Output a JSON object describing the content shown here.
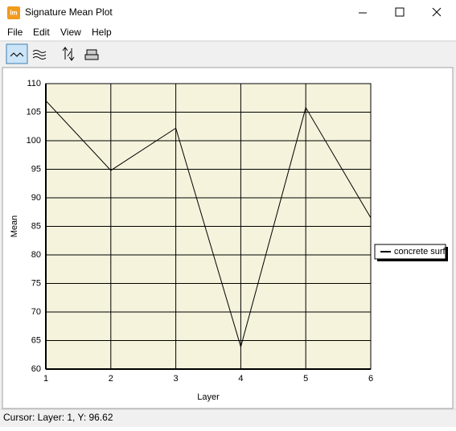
{
  "window": {
    "title": "Signature Mean Plot",
    "icon": "Im"
  },
  "menu": [
    "File",
    "Edit",
    "View",
    "Help"
  ],
  "chart_data": {
    "type": "line",
    "x_label": "Layer",
    "y_label": "Mean",
    "x": [
      1,
      2,
      3,
      4,
      5,
      6
    ],
    "series": [
      {
        "name": "concrete surf",
        "color": "#000000",
        "values": [
          107,
          94.8,
          102.2,
          63.9,
          105.8,
          86.5
        ]
      }
    ],
    "xlim": [
      1,
      6
    ],
    "xticks": [
      1,
      2,
      3,
      4,
      5,
      6
    ],
    "ylim": [
      60,
      110
    ],
    "yticks": [
      60,
      65,
      70,
      75,
      80,
      85,
      90,
      95,
      100,
      105,
      110
    ],
    "grid": true,
    "legend": "right",
    "plot_background": "#f5f3dc"
  },
  "status_bar": "Cursor: Layer: 1, Y: 96.62"
}
